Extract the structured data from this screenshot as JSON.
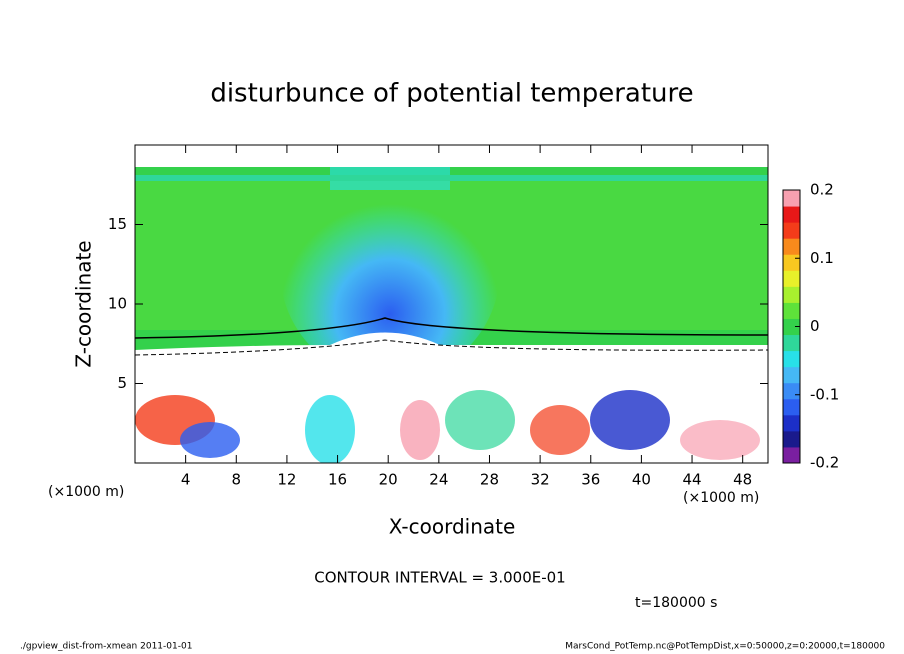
{
  "chart_data": {
    "type": "contour",
    "title": "disturbunce of potential temperature",
    "xlabel": "X-coordinate",
    "ylabel": "Z-coordinate",
    "x_unit_left": "(×1000 m)",
    "x_unit_right": "(×1000 m)",
    "xlim": [
      0,
      50
    ],
    "xticks": [
      4,
      8,
      12,
      16,
      20,
      24,
      28,
      32,
      36,
      40,
      44,
      48
    ],
    "ylim": [
      0,
      20
    ],
    "yticks": [
      5,
      10,
      15
    ],
    "colorbar_lim": [
      -0.2,
      0.2
    ],
    "colorbar_ticks": [
      0.2,
      0.1,
      0,
      -0.1,
      -0.2
    ],
    "colorbar_colors": [
      "#7a1fa0",
      "#1a1a8c",
      "#1c2fc8",
      "#2b5ef0",
      "#3a8cf5",
      "#45b8f5",
      "#28e0e8",
      "#2fd79a",
      "#34d14b",
      "#5ee23a",
      "#a8f02e",
      "#e8f02a",
      "#f8c820",
      "#f88a1c",
      "#f43c1a",
      "#e81818",
      "#f8a0b0"
    ],
    "contour_interval": "CONTOUR INTERVAL = 3.000E-01",
    "time_label": "t=180000 s",
    "footer_left": "./gpview_dist-from-xmean  2011-01-01",
    "footer_right": "MarsCond_PotTemp.nc@PotTempDist,x=0:50000,z=0:20000,t=180000"
  }
}
